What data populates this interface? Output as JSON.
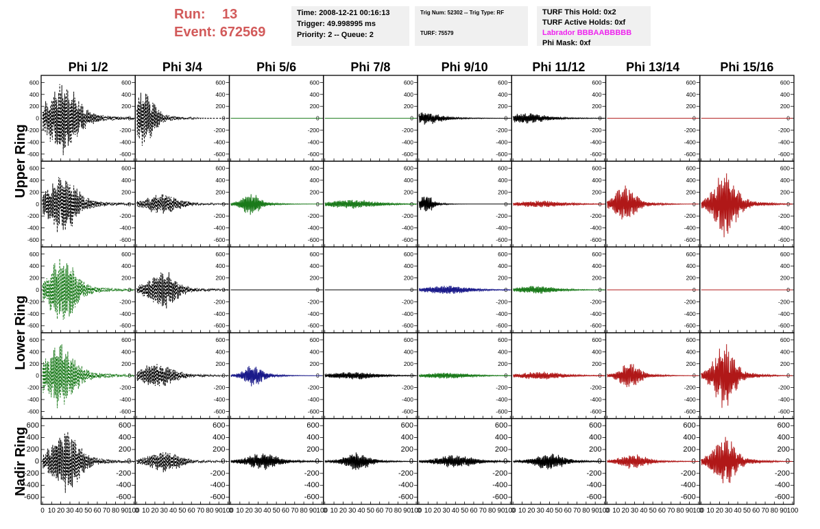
{
  "header": {
    "run_label": "Run:",
    "run_value": "13",
    "event_label": "Event:",
    "event_value": "672569",
    "time": "Time: 2008-12-21 00:16:13",
    "trigger": "Trigger: 49.998995 ms",
    "priority": "Priority: 2 -- Queue: 2",
    "trig_num": "Trig Num: 52302 -- Trig Type: RF",
    "turf": "TURF: 75579",
    "turf_hold": "TURF This Hold: 0x2",
    "turf_active": "TURF Active Holds: 0xf",
    "labrador": "Labrador BBBAABBBBB",
    "phi_mask": "Phi Mask: 0xf"
  },
  "colors": {
    "black": "#000000",
    "green": "#1a7a1a",
    "red": "#b01818",
    "blue": "#1a1a8a",
    "run_text": "#d25a5a",
    "labrador": "#ee22ee"
  },
  "chart_data": {
    "type": "line",
    "columns": [
      "Phi 1/2",
      "Phi 3/4",
      "Phi 5/6",
      "Phi 7/8",
      "Phi 9/10",
      "Phi 11/12",
      "Phi 13/14",
      "Phi 15/16"
    ],
    "ring_labels": [
      {
        "text": "Upper Ring",
        "rows": [
          0,
          1
        ]
      },
      {
        "text": "Lower Ring",
        "rows": [
          2,
          3
        ]
      },
      {
        "text": "Nadir Ring",
        "rows": [
          4
        ]
      }
    ],
    "xlim": [
      0,
      100
    ],
    "x_ticks": [
      0,
      10,
      20,
      30,
      40,
      50,
      60,
      70,
      80,
      90,
      100
    ],
    "ylim": [
      -650,
      650
    ],
    "y_ticks": [
      -600,
      -400,
      -200,
      0,
      200,
      400,
      600
    ],
    "panels": [
      [
        {
          "color": "black",
          "dashed": true,
          "amp": 620,
          "peak": 22,
          "width": 20
        },
        {
          "color": "black",
          "dashed": true,
          "amp": 480,
          "peak": 8,
          "width": 14
        },
        {
          "color": "flat",
          "flat_color": "green"
        },
        {
          "color": "flat",
          "flat_color": "green"
        },
        {
          "color": "black",
          "dashed": false,
          "amp": 110,
          "peak": 8,
          "width": 20
        },
        {
          "color": "black",
          "dashed": false,
          "amp": 90,
          "peak": 15,
          "width": 25
        },
        {
          "color": "flat",
          "flat_color": "red"
        },
        {
          "color": "flat",
          "flat_color": "red"
        }
      ],
      [
        {
          "color": "black",
          "dashed": true,
          "amp": 560,
          "peak": 22,
          "width": 18
        },
        {
          "color": "black",
          "dashed": true,
          "amp": 180,
          "peak": 28,
          "width": 22
        },
        {
          "color": "green",
          "dashed": false,
          "amp": 190,
          "peak": 22,
          "width": 12
        },
        {
          "color": "green",
          "dashed": false,
          "amp": 80,
          "peak": 30,
          "width": 30
        },
        {
          "color": "black",
          "dashed": false,
          "amp": 170,
          "peak": 8,
          "width": 8
        },
        {
          "color": "red",
          "dashed": false,
          "amp": 60,
          "peak": 30,
          "width": 30
        },
        {
          "color": "red",
          "dashed": false,
          "amp": 330,
          "peak": 20,
          "width": 13
        },
        {
          "color": "red",
          "dashed": false,
          "amp": 600,
          "peak": 26,
          "width": 14
        }
      ],
      [
        {
          "color": "green",
          "dashed": true,
          "amp": 580,
          "peak": 22,
          "width": 18
        },
        {
          "color": "black",
          "dashed": true,
          "amp": 350,
          "peak": 28,
          "width": 18
        },
        {
          "color": "flat",
          "flat_color": "black"
        },
        {
          "color": "flat",
          "flat_color": "black"
        },
        {
          "color": "blue",
          "dashed": false,
          "amp": 75,
          "peak": 30,
          "width": 28
        },
        {
          "color": "green",
          "dashed": false,
          "amp": 70,
          "peak": 25,
          "width": 25
        },
        {
          "color": "flat",
          "flat_color": "red"
        },
        {
          "color": "flat",
          "flat_color": "red"
        }
      ],
      [
        {
          "color": "green",
          "dashed": true,
          "amp": 560,
          "peak": 18,
          "width": 20
        },
        {
          "color": "black",
          "dashed": true,
          "amp": 220,
          "peak": 22,
          "width": 22
        },
        {
          "color": "blue",
          "dashed": false,
          "amp": 200,
          "peak": 25,
          "width": 12
        },
        {
          "color": "black",
          "dashed": false,
          "amp": 70,
          "peak": 30,
          "width": 28
        },
        {
          "color": "green",
          "dashed": false,
          "amp": 55,
          "peak": 30,
          "width": 28
        },
        {
          "color": "red",
          "dashed": false,
          "amp": 70,
          "peak": 30,
          "width": 28
        },
        {
          "color": "red",
          "dashed": false,
          "amp": 230,
          "peak": 25,
          "width": 13
        },
        {
          "color": "red",
          "dashed": false,
          "amp": 580,
          "peak": 25,
          "width": 13
        }
      ],
      [
        {
          "color": "black",
          "dashed": true,
          "amp": 560,
          "peak": 25,
          "width": 18
        },
        {
          "color": "black",
          "dashed": true,
          "amp": 200,
          "peak": 30,
          "width": 20
        },
        {
          "color": "black",
          "dashed": false,
          "amp": 150,
          "peak": 35,
          "width": 20
        },
        {
          "color": "black",
          "dashed": false,
          "amp": 170,
          "peak": 35,
          "width": 15
        },
        {
          "color": "black",
          "dashed": false,
          "amp": 110,
          "peak": 40,
          "width": 25
        },
        {
          "color": "black",
          "dashed": false,
          "amp": 150,
          "peak": 40,
          "width": 18
        },
        {
          "color": "red",
          "dashed": false,
          "amp": 130,
          "peak": 28,
          "width": 18
        },
        {
          "color": "red",
          "dashed": false,
          "amp": 460,
          "peak": 25,
          "width": 14
        }
      ]
    ]
  }
}
